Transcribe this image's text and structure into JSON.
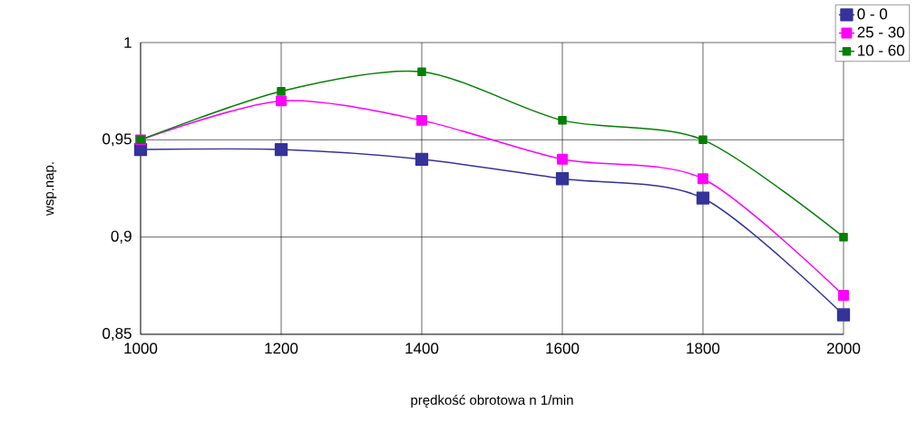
{
  "chart_data": {
    "type": "line",
    "xlabel": "prędkość  obrotowa  n 1/min",
    "ylabel": "wsp.nap.",
    "x": [
      1000,
      1200,
      1400,
      1600,
      1800,
      2000
    ],
    "series": [
      {
        "name": "0 - 0",
        "color": "#333399",
        "values": [
          0.945,
          0.945,
          0.94,
          0.93,
          0.92,
          0.86
        ]
      },
      {
        "name": "25 - 30",
        "color": "#ff00ff",
        "values": [
          0.95,
          0.97,
          0.96,
          0.94,
          0.93,
          0.87
        ]
      },
      {
        "name": "10 - 60",
        "color": "#008000",
        "values": [
          0.95,
          0.975,
          0.985,
          0.96,
          0.95,
          0.9
        ]
      }
    ],
    "xlim": [
      1000,
      2000
    ],
    "ylim": [
      0.85,
      1
    ],
    "xticks": [
      1000,
      1200,
      1400,
      1600,
      1800,
      2000
    ],
    "yticks": [
      {
        "value": 0.85,
        "label": "0,85"
      },
      {
        "value": 0.9,
        "label": "0,9"
      },
      {
        "value": 0.95,
        "label": "0,95"
      },
      1
    ],
    "grid": true,
    "legend": "top right",
    "marker": "square",
    "line_style": "solid"
  }
}
